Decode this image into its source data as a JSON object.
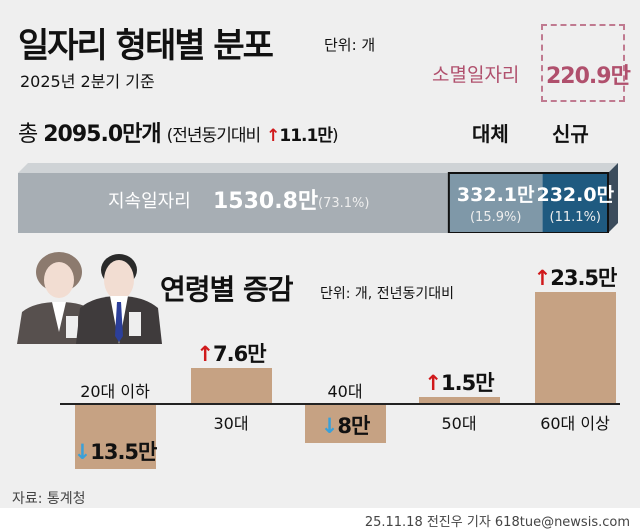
{
  "header": {
    "title": "일자리 형태별 분포",
    "unit": "단위: 개",
    "date": "2025년 2분기 기준"
  },
  "disappeared": {
    "label": "소멸일자리",
    "value": "220.9만"
  },
  "total": {
    "prefix": "총",
    "value": "2095.0만개",
    "compare_open": "(전년동기대비",
    "arrow": "↑",
    "change": "11.1만",
    "compare_close": ")"
  },
  "stack": {
    "headers": {
      "replaced": "대체",
      "new": "신규"
    },
    "segments": [
      {
        "label": "지속일자리",
        "value": "1530.8만",
        "pct": "(73.1%)",
        "share": 73.1,
        "color": "#a7aeb4"
      },
      {
        "label": "대체",
        "value": "332.1만",
        "pct": "(15.9%)",
        "share": 15.9,
        "color": "#7f98a8"
      },
      {
        "label": "신규",
        "value": "232.0만",
        "pct": "(11.1%)",
        "share": 11.1,
        "color": "#1f5a80"
      }
    ]
  },
  "chart_data": {
    "type": "bar",
    "title": "연령별 증감",
    "unit": "단위: 개, 전년동기대비",
    "categories": [
      "20대 이하",
      "30대",
      "40대",
      "50대",
      "60대 이상"
    ],
    "values": [
      -135000,
      76000,
      -80000,
      15000,
      235000
    ],
    "labels": [
      "13.5만",
      "7.6만",
      "8만",
      "1.5만",
      "23.5만"
    ],
    "bar_color": "#c6a283",
    "up_color": "#d0191b",
    "down_color": "#3aa0d8"
  },
  "footer": {
    "source": "자료: 통계청",
    "credit": "25.11.18 전진우 기자 618tue@newsis.com"
  }
}
